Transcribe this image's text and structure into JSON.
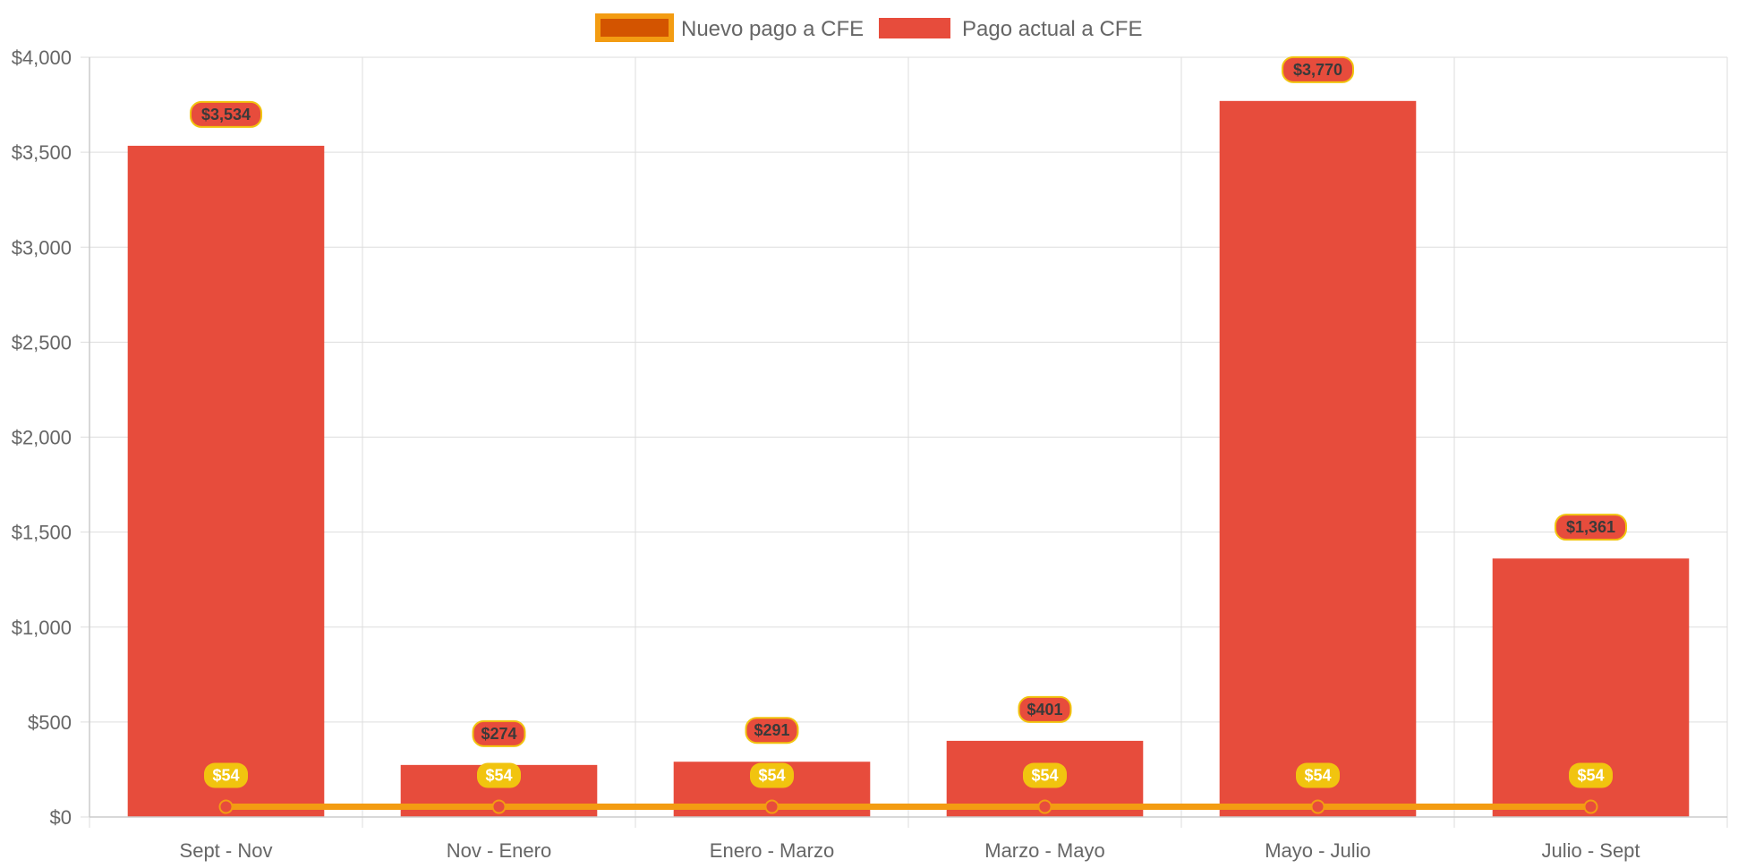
{
  "chart_data": {
    "type": "bar",
    "categories": [
      "Sept - Nov",
      "Nov - Enero",
      "Enero - Marzo",
      "Marzo - Mayo",
      "Mayo - Julio",
      "Julio - Sept"
    ],
    "series": [
      {
        "name": "Nuevo pago a CFE",
        "type": "line",
        "values": [
          54,
          54,
          54,
          54,
          54,
          54
        ],
        "labels": [
          "$54",
          "$54",
          "$54",
          "$54",
          "$54",
          "$54"
        ],
        "color": "#f39c12",
        "fill_color": "#d35400",
        "label_color": "#f1c40f"
      },
      {
        "name": "Pago actual a CFE",
        "type": "bar",
        "values": [
          3534,
          274,
          291,
          401,
          3770,
          1361
        ],
        "labels": [
          "$3,534",
          "$274",
          "$291",
          "$401",
          "$3,770",
          "$1,361"
        ],
        "color": "#e74c3c"
      }
    ],
    "y_ticks": [
      "$0",
      "$500",
      "$1,000",
      "$1,500",
      "$2,000",
      "$2,500",
      "$3,000",
      "$3,500",
      "$4,000"
    ],
    "ylim": [
      0,
      4000
    ],
    "y_step": 500,
    "grid": true,
    "legend_position": "top-center",
    "title": "",
    "xlabel": "",
    "ylabel": ""
  }
}
